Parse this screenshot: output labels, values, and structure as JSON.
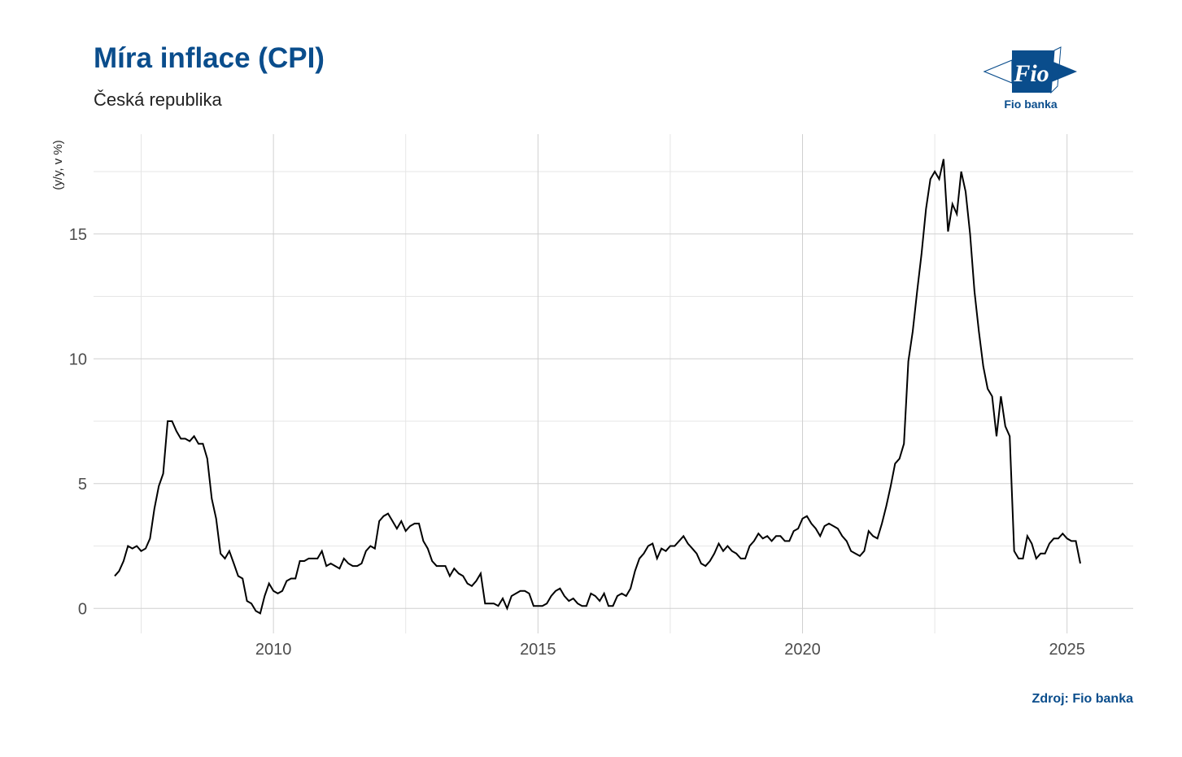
{
  "header": {
    "title": "Míra inflace (CPI)",
    "subtitle": "Česká republika"
  },
  "logo": {
    "mark_text": "Fio",
    "caption": "Fio banka",
    "color": "#0a4d8c"
  },
  "source": "Zdroj: Fio banka",
  "chart_data": {
    "type": "line",
    "title": "Míra inflace (CPI)",
    "subtitle": "Česká republika",
    "xlabel": "",
    "ylabel": "(y/y, v %)",
    "xlim": [
      2006.6,
      2026.25
    ],
    "ylim": [
      -1,
      19
    ],
    "x_ticks": [
      2010,
      2015,
      2020,
      2025
    ],
    "y_ticks": [
      0,
      5,
      10,
      15
    ],
    "grid": true,
    "line_color": "#000000",
    "series": [
      {
        "x_start": 2007.0,
        "step": 0.0833333,
        "values": [
          1.3,
          1.5,
          1.9,
          2.5,
          2.4,
          2.5,
          2.3,
          2.4,
          2.8,
          4.0,
          4.9,
          5.4,
          7.5,
          7.5,
          7.1,
          6.8,
          6.8,
          6.7,
          6.9,
          6.6,
          6.6,
          6.0,
          4.4,
          3.6,
          2.2,
          2.0,
          2.3,
          1.8,
          1.3,
          1.2,
          0.3,
          0.2,
          -0.1,
          -0.2,
          0.5,
          1.0,
          0.7,
          0.6,
          0.7,
          1.1,
          1.2,
          1.2,
          1.9,
          1.9,
          2.0,
          2.0,
          2.0,
          2.3,
          1.7,
          1.8,
          1.7,
          1.6,
          2.0,
          1.8,
          1.7,
          1.7,
          1.8,
          2.3,
          2.5,
          2.4,
          3.5,
          3.7,
          3.8,
          3.5,
          3.2,
          3.5,
          3.1,
          3.3,
          3.4,
          3.4,
          2.7,
          2.4,
          1.9,
          1.7,
          1.7,
          1.7,
          1.3,
          1.6,
          1.4,
          1.3,
          1.0,
          0.9,
          1.1,
          1.4,
          0.2,
          0.2,
          0.2,
          0.1,
          0.4,
          0.0,
          0.5,
          0.6,
          0.7,
          0.7,
          0.6,
          0.1,
          0.1,
          0.1,
          0.2,
          0.5,
          0.7,
          0.8,
          0.5,
          0.3,
          0.4,
          0.2,
          0.1,
          0.1,
          0.6,
          0.5,
          0.3,
          0.6,
          0.1,
          0.1,
          0.5,
          0.6,
          0.5,
          0.8,
          1.5,
          2.0,
          2.2,
          2.5,
          2.6,
          2.0,
          2.4,
          2.3,
          2.5,
          2.5,
          2.7,
          2.9,
          2.6,
          2.4,
          2.2,
          1.8,
          1.7,
          1.9,
          2.2,
          2.6,
          2.3,
          2.5,
          2.3,
          2.2,
          2.0,
          2.0,
          2.5,
          2.7,
          3.0,
          2.8,
          2.9,
          2.7,
          2.9,
          2.9,
          2.7,
          2.7,
          3.1,
          3.2,
          3.6,
          3.7,
          3.4,
          3.2,
          2.9,
          3.3,
          3.4,
          3.3,
          3.2,
          2.9,
          2.7,
          2.3,
          2.2,
          2.1,
          2.3,
          3.1,
          2.9,
          2.8,
          3.4,
          4.1,
          4.9,
          5.8,
          6.0,
          6.6,
          9.9,
          11.1,
          12.7,
          14.2,
          16.0,
          17.2,
          17.5,
          17.2,
          18.0,
          15.1,
          16.2,
          15.8,
          17.5,
          16.7,
          15.0,
          12.7,
          11.1,
          9.7,
          8.8,
          8.5,
          6.9,
          8.5,
          7.3,
          6.9,
          2.3,
          2.0,
          2.0,
          2.9,
          2.6,
          2.0,
          2.2,
          2.2,
          2.6,
          2.8,
          2.8,
          3.0,
          2.8,
          2.7,
          2.7,
          1.8
        ]
      }
    ]
  }
}
